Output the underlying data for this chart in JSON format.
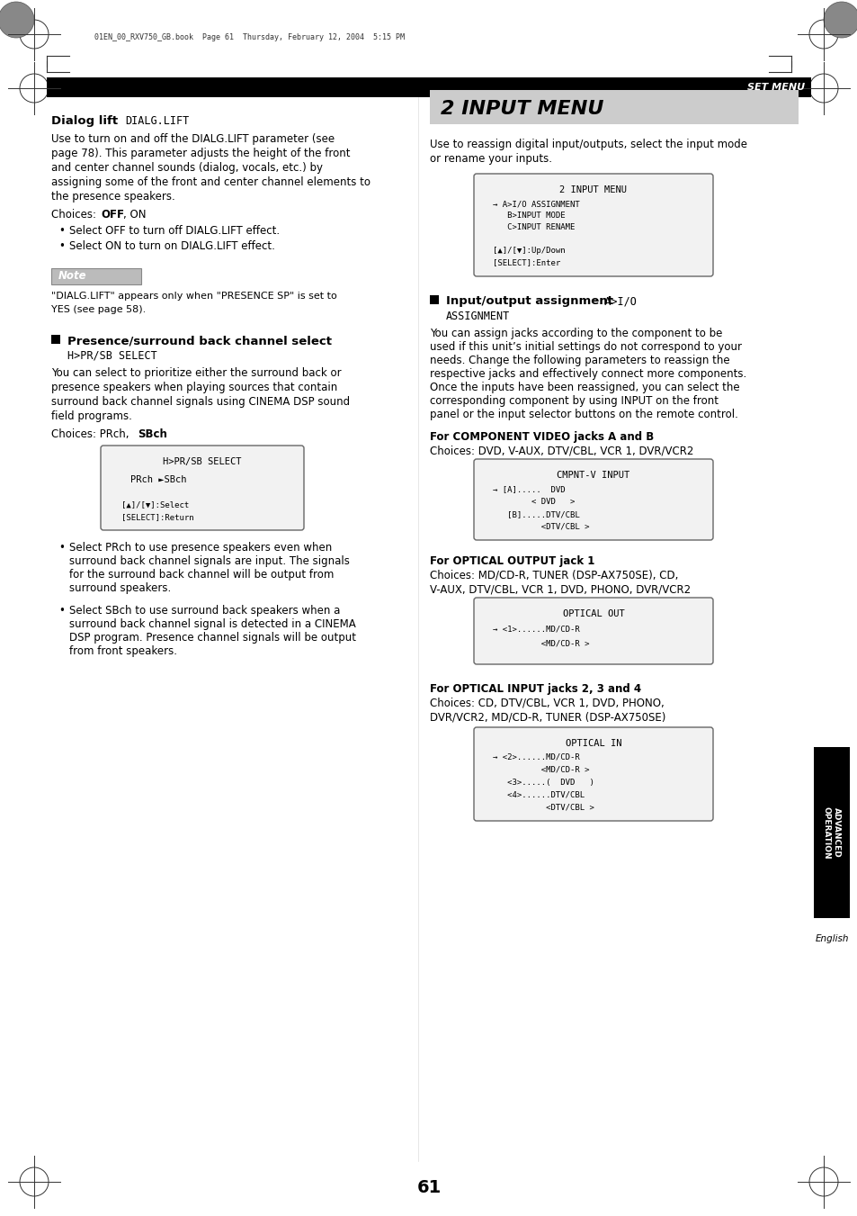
{
  "page_bg": "#ffffff",
  "header_bar_color": "#000000",
  "header_text": "SET MENU",
  "print_line": "01EN_00_RXV750_GB.book  Page 61  Thursday, February 12, 2004  5:15 PM",
  "footer_number": "61",
  "sidebar_text": "ADVANCED\nOPERATION",
  "sidebar_bg": "#000000",
  "sidebar_text_color": "#ffffff",
  "english_label": "English",
  "section_title_text": "2 INPUT MENU",
  "section_title_bg": "#cccccc"
}
